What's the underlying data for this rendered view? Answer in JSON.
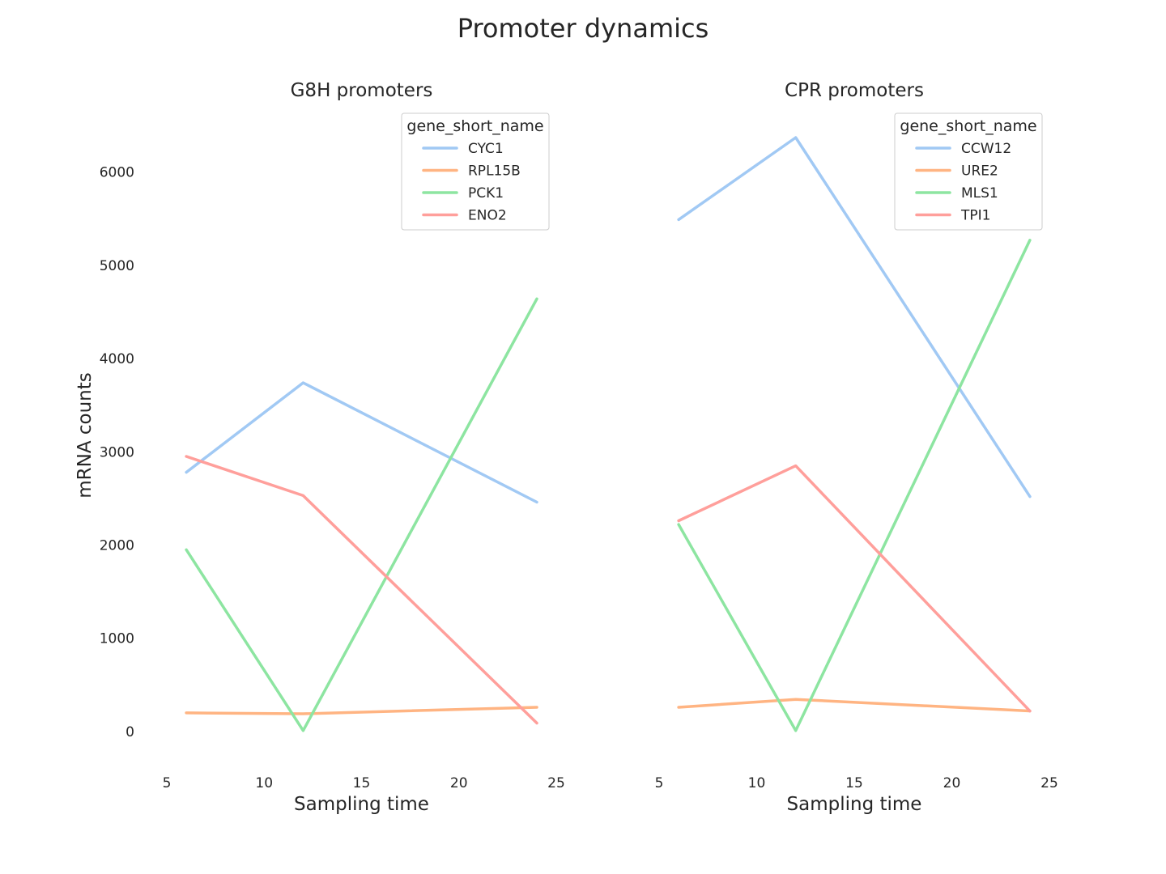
{
  "figure": {
    "title": "Promoter dynamics",
    "y_label": "mRNA counts"
  },
  "chart_data": [
    {
      "type": "line",
      "title": "G8H promoters",
      "xlabel": "Sampling time",
      "ylabel": "mRNA counts",
      "x": [
        6,
        12,
        24
      ],
      "xlim": [
        5,
        25
      ],
      "ylim": [
        -400,
        6700
      ],
      "xticks": [
        5,
        10,
        15,
        20,
        25
      ],
      "yticks": [
        0,
        1000,
        2000,
        3000,
        4000,
        5000,
        6000
      ],
      "grid": false,
      "legend": {
        "title": "gene_short_name",
        "placement": "top-right"
      },
      "series": [
        {
          "name": "CYC1",
          "color": "#a1c9f4",
          "values": [
            2780,
            3740,
            2460
          ]
        },
        {
          "name": "RPL15B",
          "color": "#ffb482",
          "values": [
            200,
            190,
            260
          ]
        },
        {
          "name": "PCK1",
          "color": "#8de5a1",
          "values": [
            1950,
            10,
            4640
          ]
        },
        {
          "name": "ENO2",
          "color": "#ff9f9b",
          "values": [
            2950,
            2530,
            90
          ]
        }
      ]
    },
    {
      "type": "line",
      "title": "CPR promoters",
      "xlabel": "Sampling time",
      "ylabel": "",
      "x": [
        6,
        12,
        24
      ],
      "xlim": [
        5,
        25
      ],
      "ylim": [
        -400,
        6700
      ],
      "xticks": [
        5,
        10,
        15,
        20,
        25
      ],
      "yticks": [],
      "grid": false,
      "legend": {
        "title": "gene_short_name",
        "placement": "top-right"
      },
      "series": [
        {
          "name": "CCW12",
          "color": "#a1c9f4",
          "values": [
            5490,
            6370,
            2520
          ]
        },
        {
          "name": "URE2",
          "color": "#ffb482",
          "values": [
            260,
            345,
            220
          ]
        },
        {
          "name": "MLS1",
          "color": "#8de5a1",
          "values": [
            2220,
            10,
            5270
          ]
        },
        {
          "name": "TPI1",
          "color": "#ff9f9b",
          "values": [
            2260,
            2850,
            220
          ]
        }
      ]
    }
  ]
}
